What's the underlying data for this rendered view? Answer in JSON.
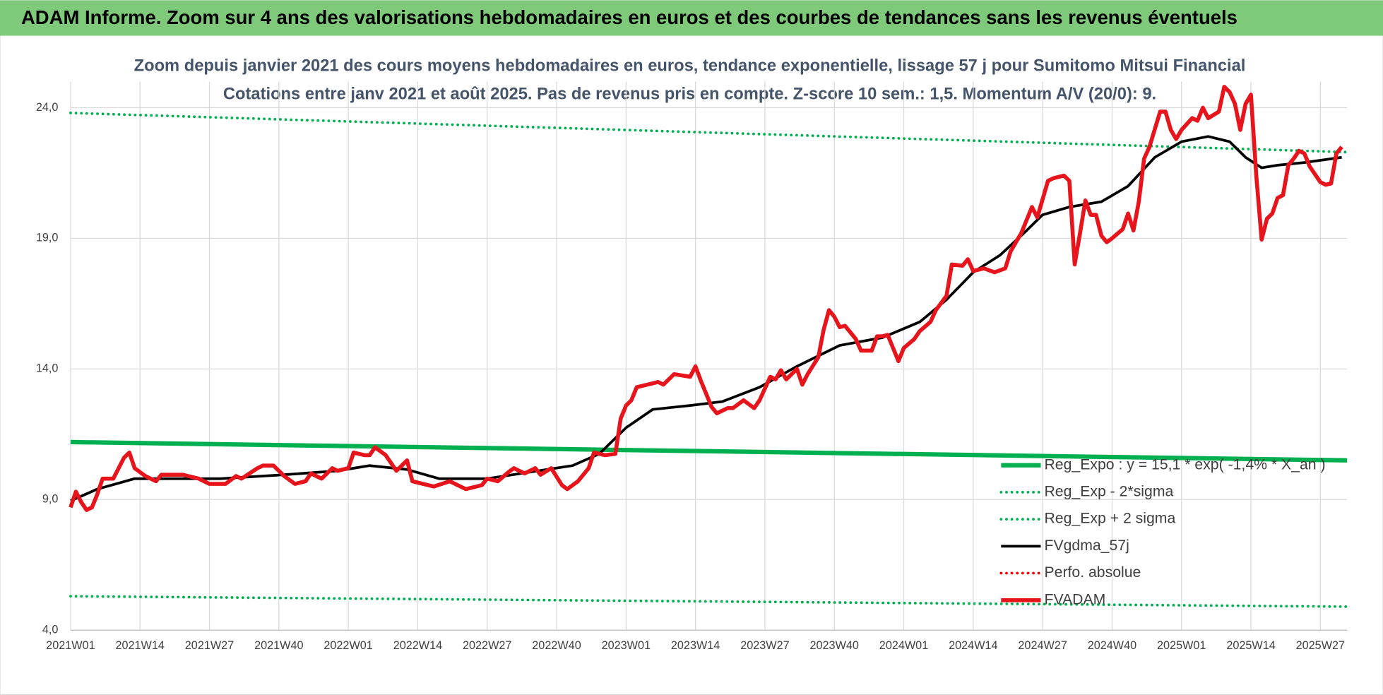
{
  "header": {
    "title": "ADAM Informe. Zoom sur 4 ans des valorisations hebdomadaires en euros et des courbes de tendances sans les revenus éventuels"
  },
  "chart_data": {
    "type": "line",
    "title": "Zoom depuis janvier 2021 des cours moyens hebdomadaires en euros, tendance exponentielle, lissage 57 j pour Sumitomo Mitsui Financial",
    "subtitle": "Cotations entre janv 2021 et août 2025.  Pas de revenus pris en compte. Z-score 10 sem.: 1,5. Momentum A/V (20/0): 9.",
    "xlim": [
      0,
      239
    ],
    "xticks": [
      {
        "value": 0,
        "label": "2021W01"
      },
      {
        "value": 13,
        "label": "2021W14"
      },
      {
        "value": 26,
        "label": "2021W27"
      },
      {
        "value": 39,
        "label": "2021W40"
      },
      {
        "value": 52,
        "label": "2022W01"
      },
      {
        "value": 65,
        "label": "2022W14"
      },
      {
        "value": 78,
        "label": "2022W27"
      },
      {
        "value": 91,
        "label": "2022W40"
      },
      {
        "value": 104,
        "label": "2023W01"
      },
      {
        "value": 117,
        "label": "2023W14"
      },
      {
        "value": 130,
        "label": "2023W27"
      },
      {
        "value": 143,
        "label": "2023W40"
      },
      {
        "value": 156,
        "label": "2024W01"
      },
      {
        "value": 169,
        "label": "2024W14"
      },
      {
        "value": 182,
        "label": "2024W27"
      },
      {
        "value": 195,
        "label": "2024W40"
      },
      {
        "value": 208,
        "label": "2025W01"
      },
      {
        "value": 221,
        "label": "2025W14"
      },
      {
        "value": 234,
        "label": "2025W27"
      }
    ],
    "ylim": [
      4,
      25
    ],
    "yticks": [
      {
        "value": 4,
        "label": "4,0"
      },
      {
        "value": 9,
        "label": "9,0"
      },
      {
        "value": 14,
        "label": "14,0"
      },
      {
        "value": 19,
        "label": "19,0"
      },
      {
        "value": 24,
        "label": "24,0"
      }
    ],
    "grid": true,
    "series": [
      {
        "name": "Reg_Expo : y = 15,1 * exp( -1,4% * X_an )",
        "color": "#00b050",
        "style": "solid",
        "x": [
          0,
          239
        ],
        "values": [
          11.2,
          10.5
        ]
      },
      {
        "name": "Reg_Exp - 2*sigma",
        "color": "#00b050",
        "style": "dotted",
        "x": [
          0,
          239
        ],
        "values": [
          5.3,
          4.9
        ]
      },
      {
        "name": "Reg_Exp + 2 sigma",
        "color": "#00b050",
        "style": "dotted",
        "x": [
          0,
          239
        ],
        "values": [
          23.8,
          22.3
        ]
      },
      {
        "name": "FVgdma_57j",
        "color": "#000000",
        "style": "solid",
        "x": [
          0,
          5,
          12,
          28,
          40,
          50,
          56,
          63,
          69,
          78,
          86,
          94,
          99,
          104,
          109,
          116,
          122,
          129,
          136,
          144,
          152,
          159,
          164,
          169,
          174,
          179,
          182,
          187,
          193,
          198,
          203,
          208,
          213,
          217,
          220,
          223,
          226,
          231,
          238
        ],
        "values": [
          8.95,
          9.4,
          9.8,
          9.8,
          9.95,
          10.1,
          10.3,
          10.15,
          9.8,
          9.8,
          10.05,
          10.3,
          10.75,
          11.75,
          12.45,
          12.6,
          12.75,
          13.3,
          14.1,
          14.9,
          15.2,
          15.8,
          16.65,
          17.7,
          18.35,
          19.3,
          19.9,
          20.2,
          20.4,
          21.0,
          22.1,
          22.7,
          22.9,
          22.7,
          22.1,
          21.7,
          21.8,
          21.9,
          22.1
        ]
      },
      {
        "name": "Perfo. absolue",
        "color": "#ff0000",
        "style": "dotted",
        "x": [],
        "values": []
      },
      {
        "name": "FVADAM",
        "color": "#e8141b",
        "style": "solid",
        "x": [
          0,
          1,
          2,
          3,
          4,
          5,
          6,
          8,
          10,
          11,
          12,
          14,
          16,
          17,
          19,
          21,
          24,
          26,
          29,
          31,
          32,
          35,
          36,
          38,
          40,
          42,
          44,
          45,
          47,
          49,
          50,
          52,
          53,
          55,
          56,
          57,
          59,
          61,
          63,
          64,
          66,
          68,
          71,
          72,
          74,
          77,
          78,
          80,
          82,
          83,
          85,
          87,
          88,
          90,
          92,
          93,
          95,
          97,
          98,
          100,
          102,
          103,
          104,
          105,
          106,
          108,
          110,
          111,
          113,
          116,
          117,
          118,
          120,
          121,
          123,
          124,
          126,
          128,
          129,
          131,
          132,
          133,
          134,
          136,
          137,
          138,
          140,
          141,
          142,
          143,
          144,
          145,
          147,
          148,
          150,
          151,
          152,
          153,
          155,
          156,
          158,
          159,
          161,
          162,
          164,
          165,
          167,
          168,
          169,
          171,
          173,
          175,
          176,
          178,
          179,
          180,
          181,
          183,
          184,
          186,
          187,
          188,
          189,
          190,
          191,
          192,
          193,
          194,
          195,
          197,
          198,
          199,
          200,
          201,
          202,
          204,
          205,
          206,
          207,
          208,
          210,
          211,
          212,
          213,
          215,
          216,
          217,
          218,
          219,
          220,
          221,
          222,
          223,
          224,
          225,
          226,
          227,
          228,
          229,
          230,
          231,
          232,
          233,
          234,
          235,
          236,
          237,
          238
        ],
        "values": [
          8.7,
          9.3,
          8.9,
          8.6,
          8.7,
          9.2,
          9.8,
          9.8,
          10.6,
          10.8,
          10.2,
          9.9,
          9.7,
          9.95,
          9.95,
          9.95,
          9.8,
          9.6,
          9.6,
          9.9,
          9.8,
          10.2,
          10.3,
          10.3,
          9.9,
          9.6,
          9.7,
          10.0,
          9.8,
          10.2,
          10.1,
          10.2,
          10.8,
          10.7,
          10.7,
          11.0,
          10.7,
          10.1,
          10.5,
          9.7,
          9.6,
          9.5,
          9.7,
          9.6,
          9.4,
          9.55,
          9.8,
          9.7,
          10.05,
          10.2,
          10.0,
          10.2,
          9.95,
          10.2,
          9.55,
          9.4,
          9.7,
          10.2,
          10.8,
          10.7,
          10.75,
          12.1,
          12.6,
          12.8,
          13.3,
          13.4,
          13.5,
          13.4,
          13.8,
          13.7,
          14.1,
          13.55,
          12.55,
          12.3,
          12.5,
          12.5,
          12.8,
          12.5,
          12.8,
          13.7,
          13.6,
          13.95,
          13.6,
          14.0,
          13.4,
          13.8,
          14.45,
          15.5,
          16.25,
          16.0,
          15.6,
          15.65,
          15.15,
          14.7,
          14.7,
          15.25,
          15.25,
          15.3,
          14.3,
          14.8,
          15.15,
          15.45,
          15.8,
          16.25,
          16.8,
          18.0,
          17.95,
          18.2,
          17.75,
          17.85,
          17.7,
          17.85,
          18.5,
          19.2,
          19.7,
          20.2,
          19.8,
          21.2,
          21.3,
          21.4,
          21.2,
          18.0,
          19.2,
          20.45,
          19.9,
          19.9,
          19.1,
          18.85,
          19.0,
          19.35,
          19.95,
          19.3,
          20.4,
          22.05,
          22.5,
          23.85,
          23.85,
          23.15,
          22.8,
          23.15,
          23.6,
          23.5,
          24.0,
          23.6,
          23.85,
          24.8,
          24.6,
          24.15,
          23.15,
          24.15,
          24.5,
          21.4,
          18.95,
          19.75,
          19.95,
          20.55,
          20.65,
          21.8,
          22.05,
          22.35,
          22.25,
          21.75,
          21.45,
          21.15,
          21.05,
          21.1,
          22.25,
          22.5
        ]
      }
    ]
  }
}
